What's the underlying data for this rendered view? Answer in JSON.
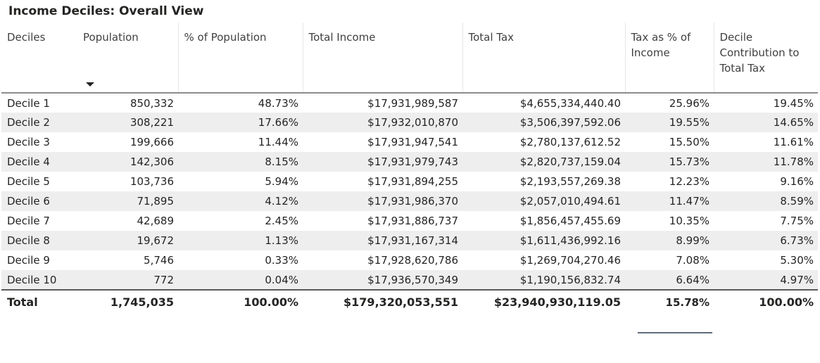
{
  "title": "Income Deciles: Overall View",
  "columns": [
    "Deciles",
    "Population",
    "% of Population",
    "Total Income",
    "Total Tax",
    "Tax as % of Income",
    "Decile Contribution to Total Tax"
  ],
  "rows": [
    [
      "Decile 1",
      "850,332",
      "48.73%",
      "$17,931,989,587",
      "$4,655,334,440.40",
      "25.96%",
      "19.45%"
    ],
    [
      "Decile 2",
      "308,221",
      "17.66%",
      "$17,932,010,870",
      "$3,506,397,592.06",
      "19.55%",
      "14.65%"
    ],
    [
      "Decile 3",
      "199,666",
      "11.44%",
      "$17,931,947,541",
      "$2,780,137,612.52",
      "15.50%",
      "11.61%"
    ],
    [
      "Decile 4",
      "142,306",
      "8.15%",
      "$17,931,979,743",
      "$2,820,737,159.04",
      "15.73%",
      "11.78%"
    ],
    [
      "Decile 5",
      "103,736",
      "5.94%",
      "$17,931,894,255",
      "$2,193,557,269.38",
      "12.23%",
      "9.16%"
    ],
    [
      "Decile 6",
      "71,895",
      "4.12%",
      "$17,931,986,370",
      "$2,057,010,494.61",
      "11.47%",
      "8.59%"
    ],
    [
      "Decile 7",
      "42,689",
      "2.45%",
      "$17,931,886,737",
      "$1,856,457,455.69",
      "10.35%",
      "7.75%"
    ],
    [
      "Decile 8",
      "19,672",
      "1.13%",
      "$17,931,167,314",
      "$1,611,436,992.16",
      "8.99%",
      "6.73%"
    ],
    [
      "Decile 9",
      "5,746",
      "0.33%",
      "$17,928,620,786",
      "$1,269,704,270.46",
      "7.08%",
      "5.30%"
    ],
    [
      "Decile 10",
      "772",
      "0.04%",
      "$17,936,570,349",
      "$1,190,156,832.74",
      "6.64%",
      "4.97%"
    ]
  ],
  "totals": [
    "Total",
    "1,745,035",
    "100.00%",
    "$179,320,053,551",
    "$23,940,930,119.05",
    "15.78%",
    "100.00%"
  ],
  "sort": {
    "column": "Population",
    "direction": "descending",
    "icon": "sort-descending-icon"
  }
}
